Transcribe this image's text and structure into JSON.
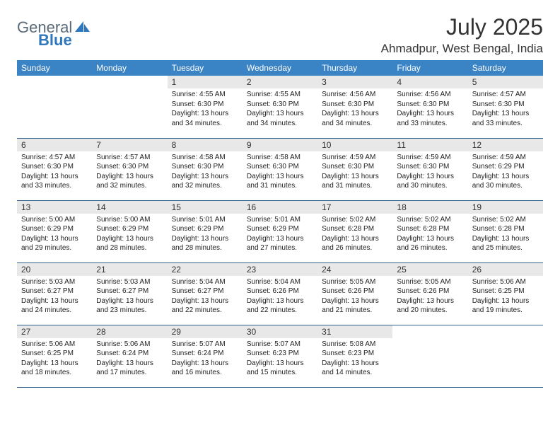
{
  "brand": {
    "text1": "General",
    "text2": "Blue"
  },
  "title": "July 2025",
  "location": "Ahmadpur, West Bengal, India",
  "colors": {
    "header_bg": "#3a83c5",
    "header_fg": "#ffffff",
    "daynum_bg": "#e8e8e8",
    "border": "#2f5d8c",
    "brand_gray": "#5a6a78",
    "brand_blue": "#2f78bd"
  },
  "weekdays": [
    "Sunday",
    "Monday",
    "Tuesday",
    "Wednesday",
    "Thursday",
    "Friday",
    "Saturday"
  ],
  "weeks": [
    [
      null,
      null,
      {
        "n": "1",
        "sr": "Sunrise: 4:55 AM",
        "ss": "Sunset: 6:30 PM",
        "dl1": "Daylight: 13 hours",
        "dl2": "and 34 minutes."
      },
      {
        "n": "2",
        "sr": "Sunrise: 4:55 AM",
        "ss": "Sunset: 6:30 PM",
        "dl1": "Daylight: 13 hours",
        "dl2": "and 34 minutes."
      },
      {
        "n": "3",
        "sr": "Sunrise: 4:56 AM",
        "ss": "Sunset: 6:30 PM",
        "dl1": "Daylight: 13 hours",
        "dl2": "and 34 minutes."
      },
      {
        "n": "4",
        "sr": "Sunrise: 4:56 AM",
        "ss": "Sunset: 6:30 PM",
        "dl1": "Daylight: 13 hours",
        "dl2": "and 33 minutes."
      },
      {
        "n": "5",
        "sr": "Sunrise: 4:57 AM",
        "ss": "Sunset: 6:30 PM",
        "dl1": "Daylight: 13 hours",
        "dl2": "and 33 minutes."
      }
    ],
    [
      {
        "n": "6",
        "sr": "Sunrise: 4:57 AM",
        "ss": "Sunset: 6:30 PM",
        "dl1": "Daylight: 13 hours",
        "dl2": "and 33 minutes."
      },
      {
        "n": "7",
        "sr": "Sunrise: 4:57 AM",
        "ss": "Sunset: 6:30 PM",
        "dl1": "Daylight: 13 hours",
        "dl2": "and 32 minutes."
      },
      {
        "n": "8",
        "sr": "Sunrise: 4:58 AM",
        "ss": "Sunset: 6:30 PM",
        "dl1": "Daylight: 13 hours",
        "dl2": "and 32 minutes."
      },
      {
        "n": "9",
        "sr": "Sunrise: 4:58 AM",
        "ss": "Sunset: 6:30 PM",
        "dl1": "Daylight: 13 hours",
        "dl2": "and 31 minutes."
      },
      {
        "n": "10",
        "sr": "Sunrise: 4:59 AM",
        "ss": "Sunset: 6:30 PM",
        "dl1": "Daylight: 13 hours",
        "dl2": "and 31 minutes."
      },
      {
        "n": "11",
        "sr": "Sunrise: 4:59 AM",
        "ss": "Sunset: 6:30 PM",
        "dl1": "Daylight: 13 hours",
        "dl2": "and 30 minutes."
      },
      {
        "n": "12",
        "sr": "Sunrise: 4:59 AM",
        "ss": "Sunset: 6:29 PM",
        "dl1": "Daylight: 13 hours",
        "dl2": "and 30 minutes."
      }
    ],
    [
      {
        "n": "13",
        "sr": "Sunrise: 5:00 AM",
        "ss": "Sunset: 6:29 PM",
        "dl1": "Daylight: 13 hours",
        "dl2": "and 29 minutes."
      },
      {
        "n": "14",
        "sr": "Sunrise: 5:00 AM",
        "ss": "Sunset: 6:29 PM",
        "dl1": "Daylight: 13 hours",
        "dl2": "and 28 minutes."
      },
      {
        "n": "15",
        "sr": "Sunrise: 5:01 AM",
        "ss": "Sunset: 6:29 PM",
        "dl1": "Daylight: 13 hours",
        "dl2": "and 28 minutes."
      },
      {
        "n": "16",
        "sr": "Sunrise: 5:01 AM",
        "ss": "Sunset: 6:29 PM",
        "dl1": "Daylight: 13 hours",
        "dl2": "and 27 minutes."
      },
      {
        "n": "17",
        "sr": "Sunrise: 5:02 AM",
        "ss": "Sunset: 6:28 PM",
        "dl1": "Daylight: 13 hours",
        "dl2": "and 26 minutes."
      },
      {
        "n": "18",
        "sr": "Sunrise: 5:02 AM",
        "ss": "Sunset: 6:28 PM",
        "dl1": "Daylight: 13 hours",
        "dl2": "and 26 minutes."
      },
      {
        "n": "19",
        "sr": "Sunrise: 5:02 AM",
        "ss": "Sunset: 6:28 PM",
        "dl1": "Daylight: 13 hours",
        "dl2": "and 25 minutes."
      }
    ],
    [
      {
        "n": "20",
        "sr": "Sunrise: 5:03 AM",
        "ss": "Sunset: 6:27 PM",
        "dl1": "Daylight: 13 hours",
        "dl2": "and 24 minutes."
      },
      {
        "n": "21",
        "sr": "Sunrise: 5:03 AM",
        "ss": "Sunset: 6:27 PM",
        "dl1": "Daylight: 13 hours",
        "dl2": "and 23 minutes."
      },
      {
        "n": "22",
        "sr": "Sunrise: 5:04 AM",
        "ss": "Sunset: 6:27 PM",
        "dl1": "Daylight: 13 hours",
        "dl2": "and 22 minutes."
      },
      {
        "n": "23",
        "sr": "Sunrise: 5:04 AM",
        "ss": "Sunset: 6:26 PM",
        "dl1": "Daylight: 13 hours",
        "dl2": "and 22 minutes."
      },
      {
        "n": "24",
        "sr": "Sunrise: 5:05 AM",
        "ss": "Sunset: 6:26 PM",
        "dl1": "Daylight: 13 hours",
        "dl2": "and 21 minutes."
      },
      {
        "n": "25",
        "sr": "Sunrise: 5:05 AM",
        "ss": "Sunset: 6:26 PM",
        "dl1": "Daylight: 13 hours",
        "dl2": "and 20 minutes."
      },
      {
        "n": "26",
        "sr": "Sunrise: 5:06 AM",
        "ss": "Sunset: 6:25 PM",
        "dl1": "Daylight: 13 hours",
        "dl2": "and 19 minutes."
      }
    ],
    [
      {
        "n": "27",
        "sr": "Sunrise: 5:06 AM",
        "ss": "Sunset: 6:25 PM",
        "dl1": "Daylight: 13 hours",
        "dl2": "and 18 minutes."
      },
      {
        "n": "28",
        "sr": "Sunrise: 5:06 AM",
        "ss": "Sunset: 6:24 PM",
        "dl1": "Daylight: 13 hours",
        "dl2": "and 17 minutes."
      },
      {
        "n": "29",
        "sr": "Sunrise: 5:07 AM",
        "ss": "Sunset: 6:24 PM",
        "dl1": "Daylight: 13 hours",
        "dl2": "and 16 minutes."
      },
      {
        "n": "30",
        "sr": "Sunrise: 5:07 AM",
        "ss": "Sunset: 6:23 PM",
        "dl1": "Daylight: 13 hours",
        "dl2": "and 15 minutes."
      },
      {
        "n": "31",
        "sr": "Sunrise: 5:08 AM",
        "ss": "Sunset: 6:23 PM",
        "dl1": "Daylight: 13 hours",
        "dl2": "and 14 minutes."
      },
      null,
      null
    ]
  ]
}
